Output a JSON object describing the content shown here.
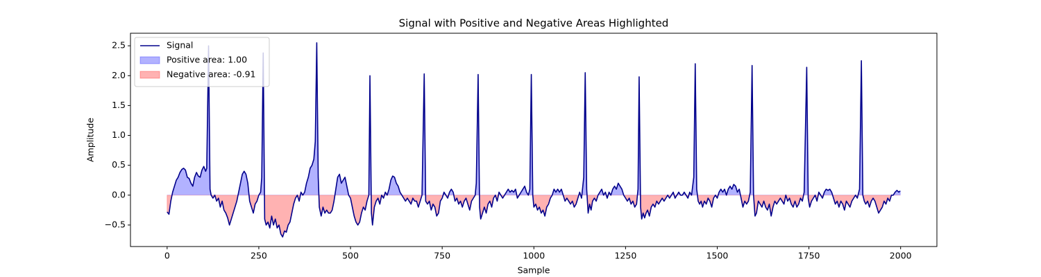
{
  "chart_data": {
    "type": "line",
    "title": "Signal with Positive and Negative Areas Highlighted",
    "xlabel": "Sample",
    "ylabel": "Amplitude",
    "x": [
      0,
      5,
      10,
      15,
      20,
      25,
      30,
      35,
      40,
      45,
      50,
      55,
      60,
      65,
      70,
      75,
      80,
      85,
      90,
      95,
      100,
      105,
      108,
      113,
      117,
      120,
      125,
      130,
      135,
      140,
      145,
      150,
      155,
      160,
      165,
      170,
      175,
      180,
      185,
      190,
      195,
      200,
      205,
      210,
      215,
      220,
      225,
      230,
      235,
      240,
      245,
      250,
      255,
      258,
      262,
      266,
      270,
      275,
      280,
      285,
      290,
      295,
      300,
      305,
      310,
      315,
      320,
      325,
      330,
      335,
      340,
      345,
      350,
      355,
      360,
      365,
      370,
      375,
      380,
      385,
      390,
      395,
      400,
      404,
      408,
      412,
      415,
      420,
      425,
      430,
      435,
      440,
      445,
      450,
      455,
      460,
      465,
      470,
      475,
      480,
      485,
      490,
      495,
      500,
      505,
      510,
      515,
      520,
      525,
      530,
      535,
      540,
      545,
      550,
      553,
      557,
      560,
      565,
      570,
      575,
      580,
      585,
      590,
      595,
      600,
      605,
      610,
      615,
      620,
      625,
      630,
      635,
      640,
      645,
      650,
      655,
      660,
      665,
      670,
      675,
      680,
      685,
      690,
      695,
      701,
      705,
      710,
      715,
      720,
      725,
      730,
      735,
      740,
      745,
      750,
      755,
      760,
      765,
      770,
      775,
      780,
      785,
      790,
      795,
      800,
      805,
      810,
      815,
      820,
      825,
      830,
      835,
      840,
      843,
      848,
      852,
      855,
      860,
      865,
      870,
      875,
      880,
      885,
      890,
      895,
      900,
      905,
      910,
      915,
      920,
      925,
      930,
      935,
      940,
      945,
      950,
      955,
      960,
      965,
      970,
      975,
      980,
      985,
      989,
      993,
      997,
      1000,
      1005,
      1010,
      1015,
      1020,
      1025,
      1030,
      1035,
      1040,
      1045,
      1050,
      1055,
      1060,
      1065,
      1070,
      1075,
      1080,
      1085,
      1090,
      1095,
      1100,
      1105,
      1110,
      1115,
      1120,
      1125,
      1130,
      1136,
      1140,
      1144,
      1148,
      1152,
      1156,
      1160,
      1165,
      1170,
      1175,
      1180,
      1185,
      1190,
      1195,
      1200,
      1205,
      1210,
      1215,
      1220,
      1225,
      1230,
      1235,
      1240,
      1245,
      1250,
      1255,
      1260,
      1265,
      1270,
      1275,
      1280,
      1284,
      1287,
      1291,
      1294,
      1298,
      1302,
      1306,
      1310,
      1315,
      1320,
      1325,
      1330,
      1335,
      1340,
      1345,
      1350,
      1355,
      1360,
      1365,
      1370,
      1375,
      1380,
      1385,
      1390,
      1395,
      1400,
      1405,
      1410,
      1415,
      1420,
      1425,
      1430,
      1436,
      1440,
      1444,
      1448,
      1452,
      1456,
      1460,
      1465,
      1470,
      1475,
      1480,
      1485,
      1490,
      1495,
      1500,
      1505,
      1510,
      1515,
      1520,
      1525,
      1530,
      1535,
      1540,
      1545,
      1550,
      1555,
      1560,
      1565,
      1570,
      1575,
      1580,
      1585,
      1590,
      1595,
      1599,
      1603,
      1607,
      1612,
      1617,
      1622,
      1627,
      1632,
      1637,
      1642,
      1647,
      1652,
      1657,
      1662,
      1667,
      1672,
      1677,
      1682,
      1687,
      1692,
      1697,
      1702,
      1707,
      1712,
      1717,
      1722,
      1727,
      1732,
      1737,
      1744,
      1748,
      1752,
      1757,
      1762,
      1767,
      1772,
      1777,
      1782,
      1787,
      1792,
      1797,
      1802,
      1807,
      1812,
      1817,
      1822,
      1827,
      1832,
      1837,
      1842,
      1847,
      1852,
      1857,
      1862,
      1867,
      1872,
      1877,
      1882,
      1888,
      1893,
      1897,
      1901,
      1905,
      1910,
      1915,
      1920,
      1925,
      1930,
      1935,
      1940,
      1945,
      1950,
      1955,
      1960,
      1965,
      1970,
      1975,
      1980,
      1985,
      1990,
      1995,
      1999
    ],
    "series": [
      {
        "name": "Signal",
        "color": "#00008b",
        "values": [
          -0.28,
          -0.32,
          -0.1,
          0.05,
          0.15,
          0.25,
          0.3,
          0.38,
          0.43,
          0.45,
          0.42,
          0.3,
          0.28,
          0.2,
          0.15,
          0.3,
          0.38,
          0.32,
          0.3,
          0.42,
          0.48,
          0.4,
          0.45,
          2.5,
          0.1,
          0.0,
          -0.05,
          0.0,
          -0.1,
          -0.05,
          -0.2,
          -0.1,
          -0.25,
          -0.3,
          -0.38,
          -0.5,
          -0.4,
          -0.3,
          -0.2,
          -0.1,
          0.05,
          0.2,
          0.35,
          0.4,
          0.35,
          0.2,
          -0.1,
          -0.2,
          -0.3,
          -0.15,
          -0.1,
          0.0,
          0.05,
          0.3,
          2.38,
          -0.4,
          -0.5,
          -0.45,
          -0.55,
          -0.35,
          -0.5,
          -0.4,
          -0.55,
          -0.5,
          -0.65,
          -0.7,
          -0.6,
          -0.62,
          -0.5,
          -0.45,
          -0.3,
          -0.15,
          -0.05,
          0.0,
          -0.1,
          0.05,
          0.0,
          0.05,
          0.2,
          0.3,
          0.45,
          0.5,
          0.6,
          0.9,
          2.55,
          0.3,
          -0.2,
          -0.35,
          -0.2,
          -0.3,
          -0.25,
          -0.3,
          -0.3,
          -0.25,
          -0.1,
          0.1,
          0.3,
          0.35,
          0.2,
          0.25,
          0.3,
          0.15,
          0.0,
          -0.05,
          -0.2,
          -0.35,
          -0.45,
          -0.5,
          -0.45,
          -0.3,
          -0.2,
          -0.25,
          -0.1,
          0.0,
          2.0,
          -0.3,
          -0.5,
          -0.2,
          -0.1,
          -0.05,
          -0.15,
          0.0,
          -0.05,
          0.05,
          0.0,
          0.1,
          0.25,
          0.32,
          0.3,
          0.2,
          0.15,
          0.05,
          0.0,
          -0.05,
          -0.1,
          -0.05,
          -0.1,
          -0.15,
          -0.05,
          -0.1,
          -0.1,
          -0.2,
          -0.1,
          0.0,
          2.03,
          -0.1,
          -0.15,
          -0.1,
          -0.25,
          -0.15,
          -0.2,
          -0.35,
          -0.3,
          -0.1,
          -0.05,
          0.05,
          0.0,
          -0.05,
          0.05,
          0.1,
          0.05,
          -0.1,
          -0.05,
          -0.15,
          -0.1,
          -0.2,
          -0.1,
          -0.05,
          -0.15,
          -0.25,
          -0.1,
          -0.05,
          0.0,
          0.2,
          2.02,
          -0.2,
          -0.4,
          -0.3,
          -0.2,
          -0.3,
          -0.15,
          -0.1,
          -0.2,
          -0.05,
          0.0,
          -0.1,
          0.05,
          0.0,
          -0.05,
          0.0,
          0.05,
          0.1,
          0.05,
          0.08,
          0.05,
          0.1,
          -0.05,
          0.0,
          0.05,
          0.1,
          0.15,
          0.05,
          0.0,
          0.1,
          2.02,
          0.0,
          -0.2,
          -0.15,
          -0.25,
          -0.2,
          -0.3,
          -0.25,
          -0.35,
          -0.2,
          -0.15,
          -0.05,
          0.0,
          0.1,
          0.05,
          0.1,
          0.05,
          0.1,
          0.0,
          -0.1,
          -0.05,
          -0.1,
          -0.15,
          -0.1,
          -0.2,
          -0.15,
          -0.05,
          0.05,
          -0.05,
          0.3,
          2.05,
          0.1,
          -0.3,
          -0.15,
          -0.25,
          -0.1,
          -0.05,
          -0.1,
          0.0,
          0.05,
          0.1,
          0.0,
          0.05,
          -0.05,
          0.05,
          0.0,
          0.1,
          0.15,
          0.1,
          0.2,
          0.15,
          0.1,
          0.0,
          -0.05,
          -0.1,
          -0.05,
          -0.15,
          -0.1,
          -0.2,
          -0.15,
          0.1,
          1.98,
          -0.2,
          -0.4,
          -0.3,
          -0.38,
          -0.3,
          -0.25,
          -0.35,
          -0.2,
          -0.15,
          -0.2,
          -0.1,
          -0.15,
          -0.1,
          -0.05,
          -0.1,
          -0.05,
          0.0,
          -0.05,
          0.0,
          0.05,
          -0.05,
          0.0,
          0.05,
          0.0,
          0.0,
          0.05,
          0.0,
          -0.05,
          0.05,
          0.0,
          0.3,
          2.2,
          0.1,
          -0.1,
          -0.15,
          -0.1,
          -0.2,
          -0.1,
          -0.15,
          -0.05,
          -0.1,
          -0.2,
          -0.05,
          0.0,
          -0.05,
          0.05,
          0.1,
          0.05,
          0.1,
          0.0,
          0.1,
          0.15,
          0.1,
          0.18,
          0.15,
          0.05,
          0.1,
          -0.05,
          -0.2,
          -0.1,
          -0.15,
          -0.1,
          0.05,
          2.17,
          0.0,
          -0.35,
          -0.3,
          -0.1,
          -0.15,
          -0.2,
          -0.1,
          -0.2,
          -0.25,
          -0.15,
          -0.35,
          -0.2,
          -0.1,
          -0.15,
          -0.1,
          -0.05,
          -0.1,
          -0.15,
          0.0,
          -0.1,
          -0.05,
          -0.15,
          -0.2,
          -0.1,
          -0.2,
          -0.15,
          -0.05,
          -0.1,
          0.05,
          2.14,
          -0.05,
          -0.2,
          -0.1,
          -0.05,
          0.0,
          -0.1,
          0.05,
          0.0,
          -0.05,
          0.05,
          0.1,
          0.08,
          0.1,
          0.05,
          -0.05,
          -0.15,
          -0.1,
          -0.2,
          -0.1,
          -0.15,
          -0.25,
          -0.1,
          -0.15,
          -0.2,
          -0.1,
          -0.05,
          0.0,
          -0.05,
          0.1,
          2.25,
          0.0,
          -0.1,
          -0.15,
          -0.1,
          -0.2,
          -0.1,
          -0.05,
          -0.1,
          -0.2,
          -0.3,
          -0.25,
          -0.2,
          -0.1,
          -0.15,
          -0.05,
          -0.1,
          0.0,
          0.0,
          0.05,
          0.08,
          0.05,
          0.07
        ]
      }
    ],
    "fills": [
      {
        "name": "Positive area: 1.00",
        "color": "#0000ff",
        "alpha": 0.3,
        "where": "above"
      },
      {
        "name": "Negative area: -0.91",
        "color": "#ff0000",
        "alpha": 0.3,
        "where": "below"
      }
    ],
    "xlim": [
      -99.95,
      2098.95
    ],
    "ylim": [
      -0.86,
      2.71
    ],
    "xticks": [
      0,
      250,
      500,
      750,
      1000,
      1250,
      1500,
      1750,
      2000
    ],
    "yticks": [
      {
        "value": -0.5,
        "label": "−0.5"
      },
      {
        "value": 0,
        "label": "0.0"
      },
      0.5,
      {
        "value": 1,
        "label": "1.0"
      },
      1.5,
      {
        "value": 2,
        "label": "2.0"
      },
      2.5
    ],
    "legend": "upper left"
  }
}
